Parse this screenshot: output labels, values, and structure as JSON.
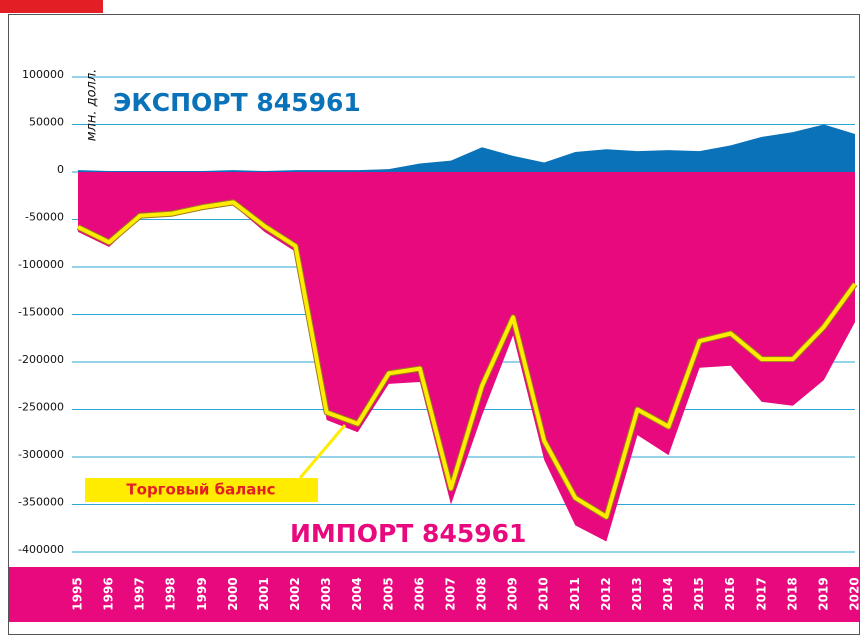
{
  "chart_data": {
    "type": "area",
    "unit_label": "млн. долл.",
    "categories": [
      "1995",
      "1996",
      "1997",
      "1998",
      "1999",
      "2000",
      "2001",
      "2002",
      "2003",
      "2004",
      "2005",
      "2006",
      "2007",
      "2008",
      "2009",
      "2010",
      "2011",
      "2012",
      "2013",
      "2014",
      "2015",
      "2016",
      "2017",
      "2018",
      "2019",
      "2020"
    ],
    "series": [
      {
        "name": "ЭКСПОРТ 845961",
        "color": "#0a72b8",
        "values": [
          2000,
          1000,
          1000,
          1000,
          1000,
          2000,
          1000,
          2000,
          2000,
          2000,
          3000,
          9000,
          12000,
          26000,
          17000,
          10000,
          21000,
          24000,
          22000,
          23000,
          22000,
          28000,
          37000,
          42000,
          50000,
          40000
        ]
      },
      {
        "name": "ИМПОРТ 845961",
        "color": "#e8097f",
        "values": [
          -63000,
          -79000,
          -48000,
          -46000,
          -40000,
          -35000,
          -63000,
          -84000,
          -261000,
          -274000,
          -223000,
          -221000,
          -350000,
          -256000,
          -172000,
          -303000,
          -372000,
          -389000,
          -277000,
          -298000,
          -206000,
          -204000,
          -242000,
          -246000,
          -219000,
          -158000
        ]
      },
      {
        "name": "Торговый баланс",
        "color": "#ffec00",
        "values": [
          -58000,
          -74000,
          -46000,
          -44000,
          -37000,
          -32000,
          -57000,
          -78000,
          -253000,
          -265000,
          -212000,
          -207000,
          -333000,
          -225000,
          -153000,
          -283000,
          -343000,
          -363000,
          -250000,
          -268000,
          -178000,
          -170000,
          -197000,
          -197000,
          -163000,
          -118000
        ]
      }
    ],
    "ylim": [
      -400000,
      100000
    ],
    "yticks": [
      100000,
      50000,
      0,
      -50000,
      -100000,
      -150000,
      -200000,
      -250000,
      -300000,
      -350000,
      -400000
    ],
    "grid": true
  }
}
